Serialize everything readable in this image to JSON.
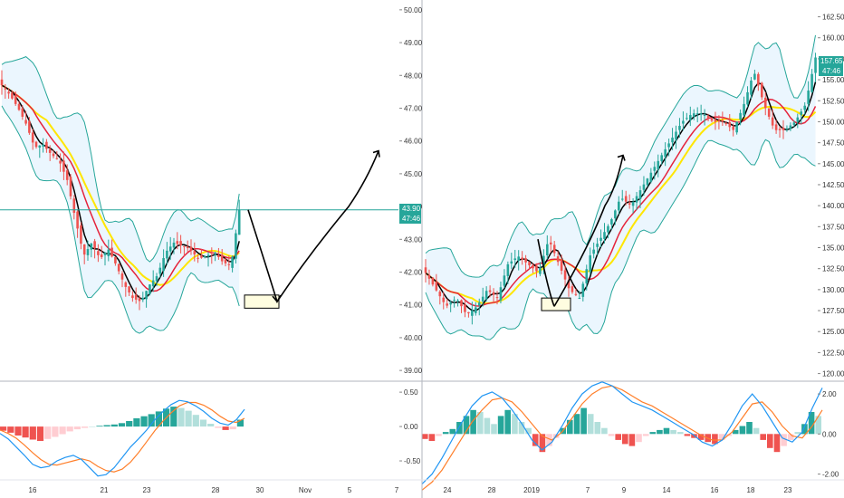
{
  "colors": {
    "up": "#26a69a",
    "down": "#ef5350",
    "bollinger": "#26a69a",
    "bollinger_fill": "#e3f2fd",
    "sma_fast": "#000000",
    "sma_mid": "#e5233b",
    "sma_slow": "#ffe600",
    "macd_line": "#2196f3",
    "signal_line": "#ff7f2a",
    "price_line": "#26a69a",
    "annotation_box": "#fffde0"
  },
  "chart_data": [
    {
      "type": "candlestick",
      "panel": "left-price",
      "indicators": [
        "Bollinger Bands",
        "Moving average (black)",
        "Moving average (red)",
        "Moving average (yellow)"
      ],
      "y_ticks": [
        "50.00",
        "49.00",
        "48.00",
        "47.00",
        "46.00",
        "45.00",
        "44.00",
        "43.00",
        "42.00",
        "41.00",
        "40.00",
        "39.00"
      ],
      "ylim": [
        38.7,
        50.3
      ],
      "x_ticks": [
        "16",
        "21",
        "23",
        "28",
        "30",
        "Nov",
        "5",
        "7"
      ],
      "last_price": "43.90",
      "countdown": "47:46",
      "close_path": [
        47.7,
        47.4,
        47.0,
        46.5,
        45.8,
        45.9,
        45.6,
        45.4,
        44.8,
        43.6,
        42.5,
        42.9,
        42.4,
        42.7,
        42.2,
        41.6,
        41.2,
        41.1,
        41.6,
        41.9,
        42.6,
        42.9,
        42.8,
        42.7,
        42.4,
        42.5,
        42.6,
        42.3,
        42.2,
        43.9
      ],
      "annotation": {
        "box_price_range": [
          40.9,
          41.3
        ],
        "arrow_path_prices": [
          43.9,
          42.0,
          41.1,
          42.5,
          44.0,
          45.7
        ]
      }
    },
    {
      "type": "candlestick",
      "panel": "right-price",
      "indicators": [
        "Bollinger Bands",
        "Moving average (black)",
        "Moving average (red)",
        "Moving average (yellow)"
      ],
      "y_ticks": [
        "162.50",
        "160.00",
        "157.50",
        "155.00",
        "152.50",
        "150.00",
        "147.50",
        "145.00",
        "142.50",
        "140.00",
        "137.50",
        "135.00",
        "132.50",
        "130.00",
        "127.50",
        "125.00",
        "122.50",
        "120.00"
      ],
      "ylim": [
        119.2,
        164.5
      ],
      "x_ticks": [
        "24",
        "28",
        "2019",
        "7",
        "9",
        "14",
        "16",
        "18",
        "23"
      ],
      "last_price": "157.65",
      "countdown": "47:46",
      "close_path": [
        132,
        130,
        128,
        129,
        127,
        128,
        130,
        129,
        133,
        134,
        133,
        132,
        136,
        133,
        130,
        129,
        134,
        136,
        138,
        141,
        140,
        142,
        144,
        146,
        148,
        150,
        151,
        151,
        150,
        150,
        149,
        152,
        156,
        152,
        149,
        149,
        150,
        152,
        157.65
      ],
      "annotation": {
        "box_price_range": [
          127.5,
          129.0
        ]
      }
    },
    {
      "type": "histogram",
      "panel": "left-macd",
      "indicators": [
        "MACD histogram",
        "MACD line",
        "Signal line"
      ],
      "y_ticks": [
        "0.50",
        "0.00",
        "-0.50"
      ],
      "ylim": [
        -0.75,
        0.62
      ],
      "histogram": [
        -0.06,
        -0.09,
        -0.13,
        -0.16,
        -0.19,
        -0.21,
        -0.18,
        -0.15,
        -0.11,
        -0.07,
        -0.04,
        -0.02,
        0.0,
        0.01,
        0.02,
        0.03,
        0.05,
        0.08,
        0.12,
        0.15,
        0.18,
        0.22,
        0.26,
        0.29,
        0.27,
        0.23,
        0.17,
        0.1,
        0.04,
        -0.02,
        -0.05,
        -0.04,
        0.1
      ],
      "macd": [
        -0.1,
        -0.18,
        -0.3,
        -0.42,
        -0.55,
        -0.6,
        -0.58,
        -0.5,
        -0.45,
        -0.42,
        -0.48,
        -0.6,
        -0.72,
        -0.7,
        -0.6,
        -0.45,
        -0.3,
        -0.18,
        -0.05,
        0.1,
        0.22,
        0.32,
        0.38,
        0.36,
        0.3,
        0.22,
        0.12,
        0.05,
        0.02,
        0.1,
        0.25
      ],
      "signal": [
        -0.05,
        -0.1,
        -0.17,
        -0.27,
        -0.38,
        -0.48,
        -0.55,
        -0.56,
        -0.53,
        -0.5,
        -0.47,
        -0.5,
        -0.58,
        -0.64,
        -0.66,
        -0.62,
        -0.52,
        -0.38,
        -0.22,
        -0.06,
        0.08,
        0.2,
        0.3,
        0.35,
        0.35,
        0.31,
        0.24,
        0.15,
        0.08,
        0.06,
        0.12
      ]
    },
    {
      "type": "histogram",
      "panel": "right-macd",
      "indicators": [
        "MACD histogram",
        "MACD line",
        "Signal line"
      ],
      "y_ticks": [
        "2.00",
        "0.00",
        "-2.00"
      ],
      "ylim": [
        -2.2,
        2.5
      ],
      "histogram": [
        -0.25,
        -0.35,
        -0.1,
        0.1,
        0.25,
        0.6,
        0.9,
        1.2,
        1.1,
        0.8,
        0.5,
        0.9,
        1.2,
        1.0,
        0.6,
        0.3,
        -0.6,
        -0.9,
        -0.6,
        -0.2,
        0.3,
        0.7,
        1.0,
        1.3,
        1.0,
        0.6,
        0.3,
        -0.1,
        -0.3,
        -0.5,
        -0.6,
        -0.4,
        -0.1,
        0.1,
        0.2,
        0.3,
        0.2,
        0.1,
        -0.1,
        -0.2,
        -0.3,
        -0.4,
        -0.5,
        -0.3,
        -0.1,
        0.2,
        0.4,
        0.6,
        0.3,
        -0.3,
        -0.7,
        -0.9,
        -0.6,
        -0.3,
        0.1,
        0.5,
        1.1,
        0.9
      ],
      "macd": [
        -2.5,
        -2.0,
        -1.2,
        -0.3,
        0.6,
        1.4,
        1.9,
        2.1,
        1.8,
        1.2,
        0.5,
        -0.3,
        -0.8,
        -0.4,
        0.4,
        1.3,
        2.0,
        2.4,
        2.6,
        2.4,
        2.0,
        1.6,
        1.4,
        1.2,
        0.9,
        0.6,
        0.3,
        0.0,
        -0.4,
        -0.6,
        -0.3,
        0.5,
        1.4,
        2.0,
        1.4,
        0.6,
        -0.2,
        -0.4,
        0.1,
        1.3,
        2.3
      ],
      "signal": [
        -2.8,
        -2.4,
        -1.8,
        -1.0,
        -0.2,
        0.6,
        1.2,
        1.7,
        1.8,
        1.6,
        1.1,
        0.5,
        -0.1,
        -0.3,
        0.1,
        0.8,
        1.5,
        2.0,
        2.3,
        2.4,
        2.2,
        1.9,
        1.6,
        1.4,
        1.1,
        0.8,
        0.5,
        0.2,
        -0.1,
        -0.3,
        -0.3,
        0.1,
        0.8,
        1.5,
        1.6,
        1.1,
        0.4,
        -0.1,
        -0.2,
        0.4,
        1.2
      ]
    }
  ]
}
